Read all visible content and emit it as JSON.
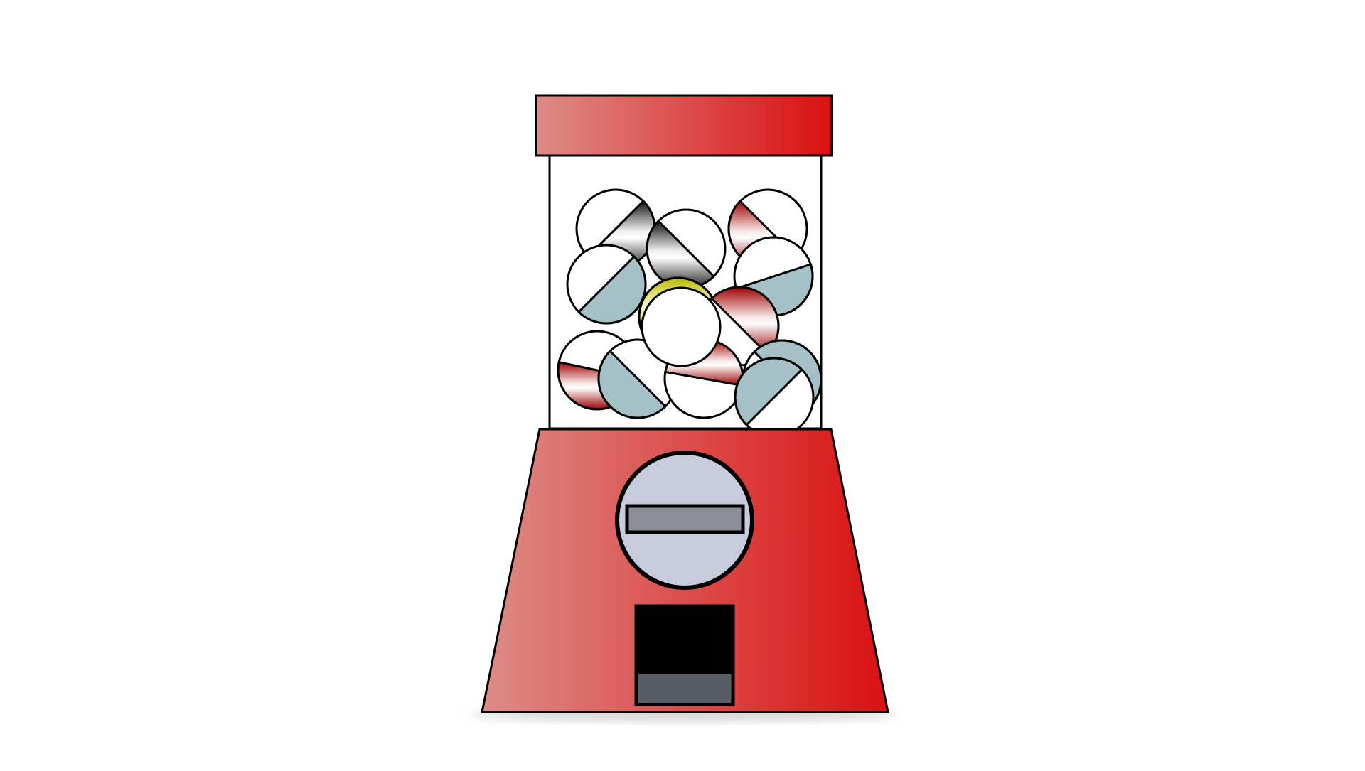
{
  "machine": {
    "body_gradient": [
      "#dc8c88",
      "#da1010"
    ],
    "outline": "#000000",
    "globe_fill": "#ffffff",
    "coin_plate_fill": "#c7cbdc",
    "coin_slot_fill": "#8c8f98",
    "chute_fill": "#000000",
    "chute_flap_fill": "#585c64",
    "shadow": "#e6e6e6"
  },
  "gumballs": [
    {
      "id": "ball-1",
      "color": "silver-black",
      "angle": -45,
      "side": "left"
    },
    {
      "id": "ball-2",
      "color": "silver-black",
      "angle": 45,
      "side": "left"
    },
    {
      "id": "ball-3",
      "color": "red",
      "angle": 45,
      "side": "left"
    },
    {
      "id": "ball-4",
      "color": "light-blue",
      "angle": -45,
      "side": "left"
    },
    {
      "id": "ball-5",
      "color": "light-blue",
      "angle": -18,
      "side": "left"
    },
    {
      "id": "ball-6",
      "color": "yellow",
      "angle": -28,
      "side": "right"
    },
    {
      "id": "ball-7",
      "color": "red",
      "angle": 45,
      "side": "right"
    },
    {
      "id": "ball-8",
      "color": "red",
      "angle": 12,
      "side": "left"
    },
    {
      "id": "ball-9",
      "color": "light-blue",
      "angle": 45,
      "side": "left"
    },
    {
      "id": "ball-10",
      "color": "red",
      "angle": 10,
      "side": "right"
    },
    {
      "id": "ball-11",
      "color": "light-blue",
      "angle": 45,
      "side": "right"
    },
    {
      "id": "ball-12",
      "color": "light-blue",
      "angle": -45,
      "side": "right"
    },
    {
      "id": "ball-13",
      "color": "white",
      "angle": 0,
      "side": "none"
    }
  ]
}
